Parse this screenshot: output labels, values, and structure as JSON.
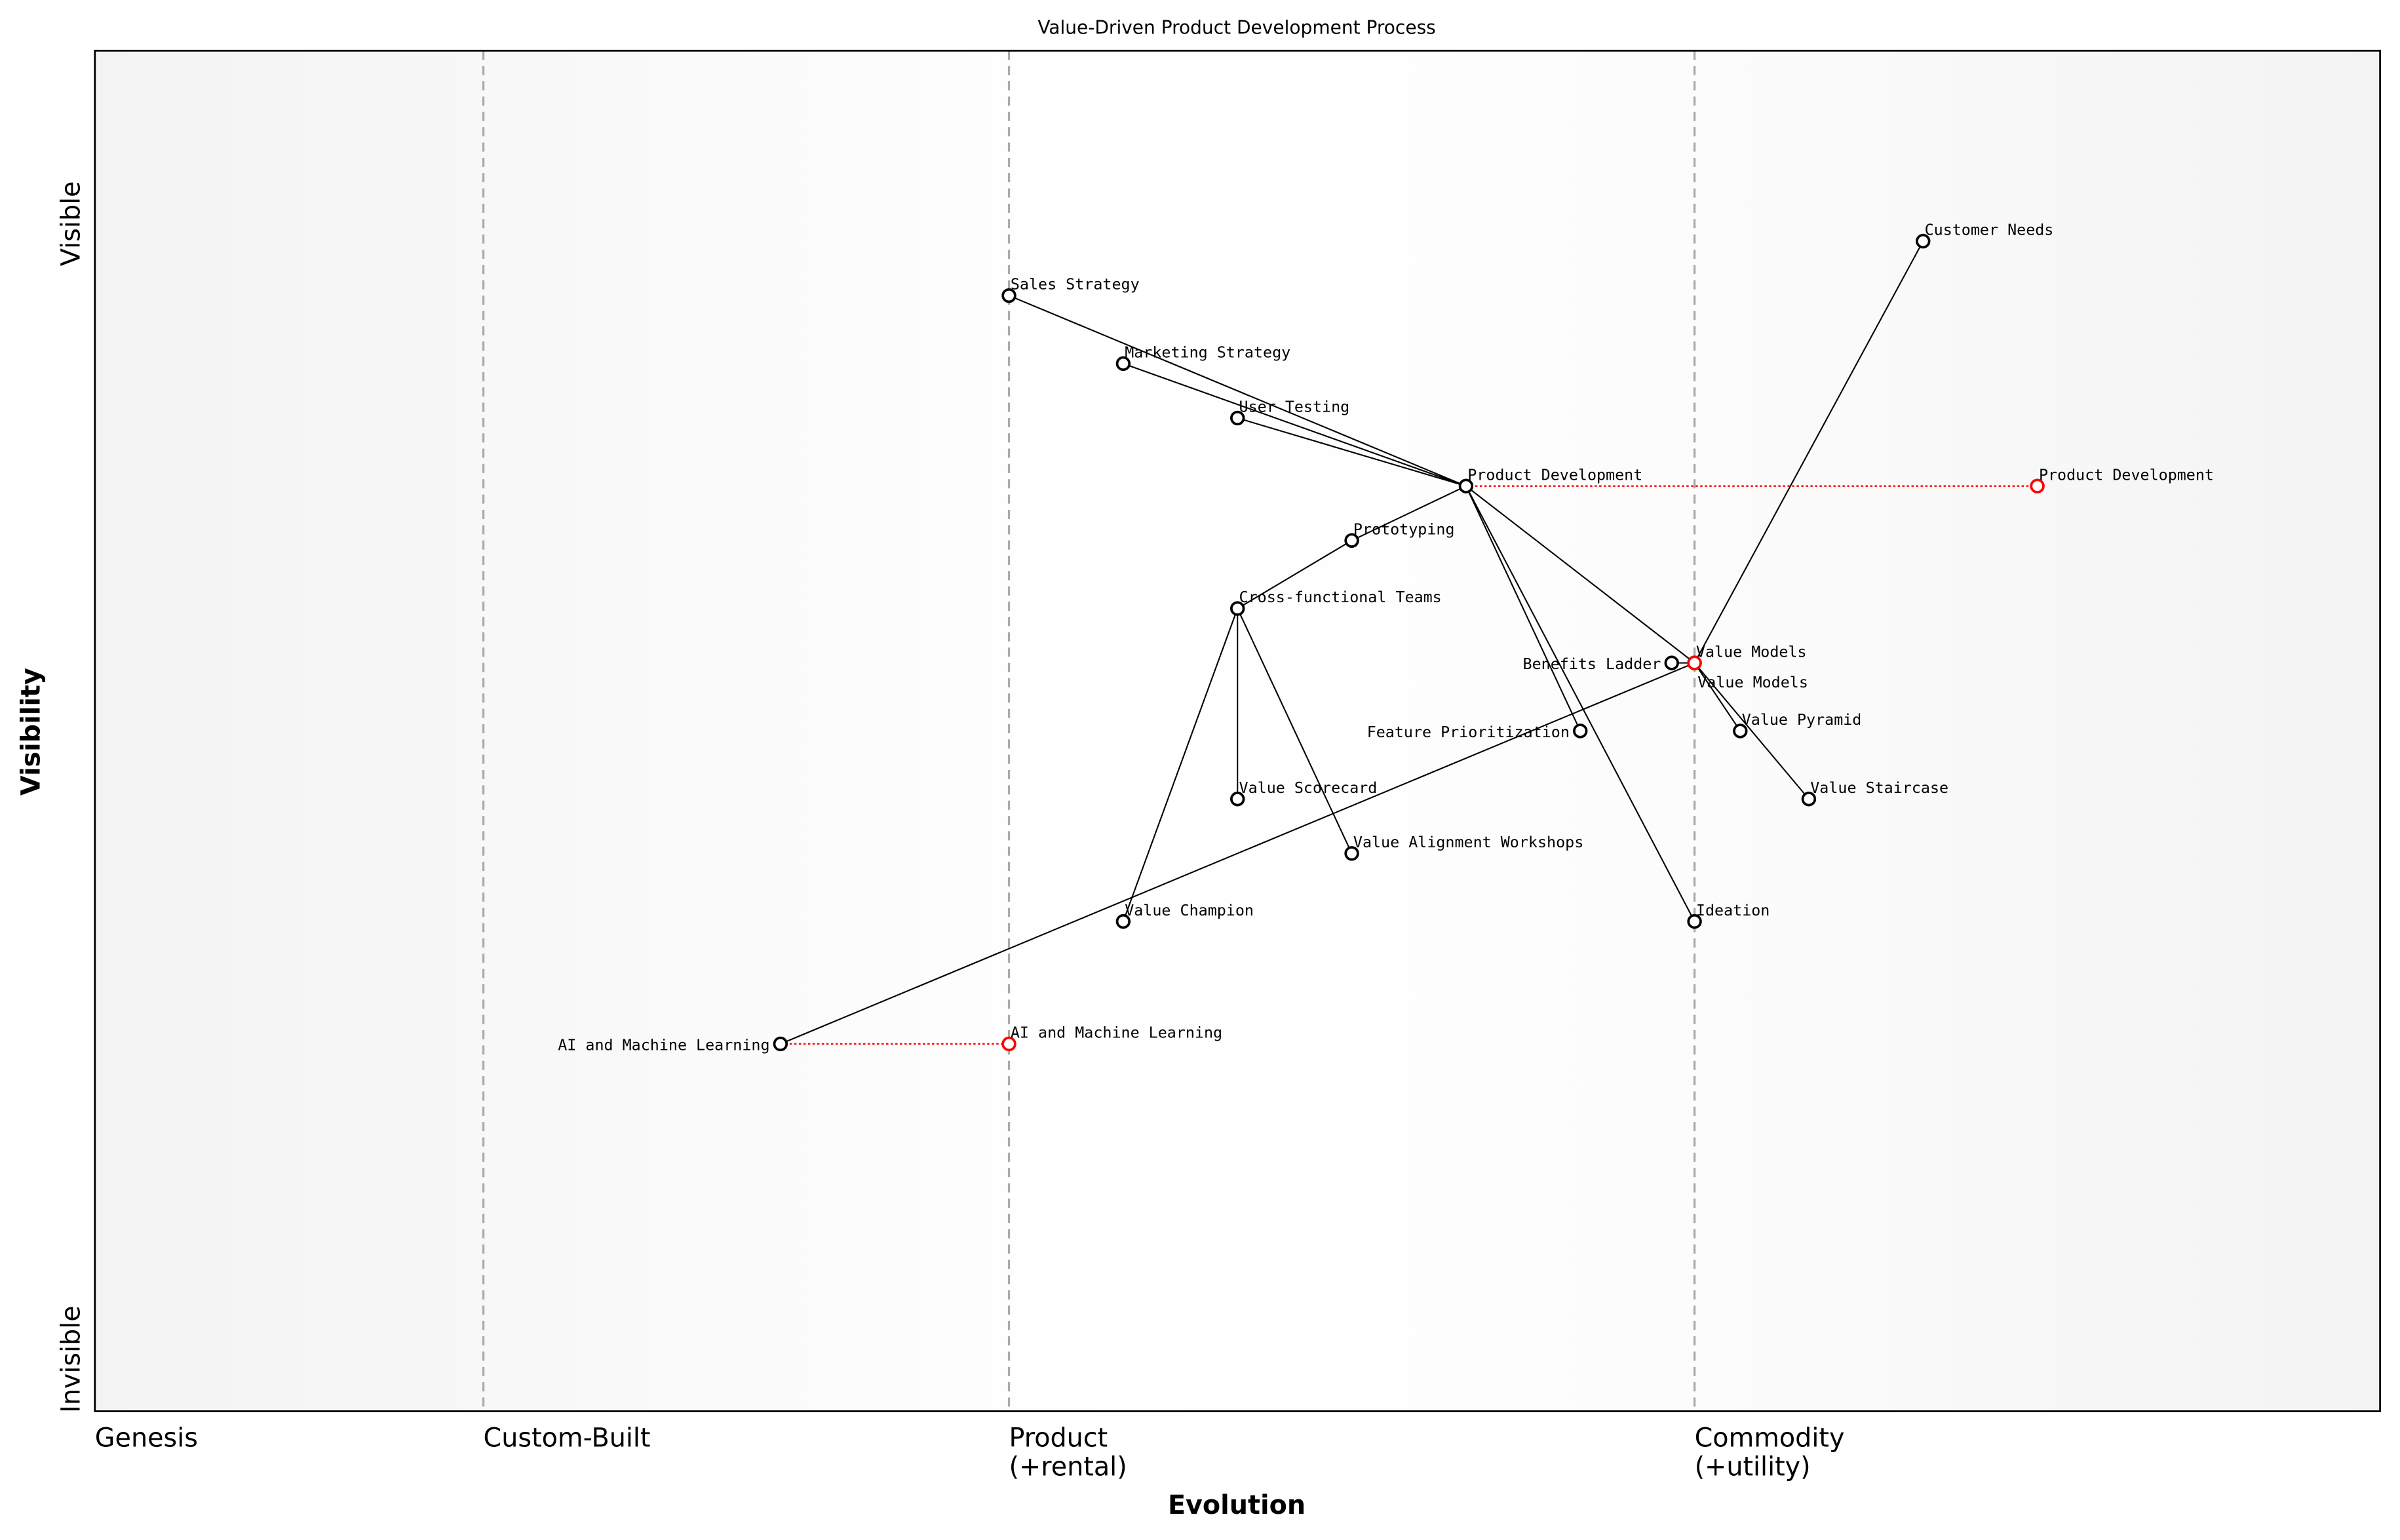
{
  "title": "Value-Driven Product Development Process",
  "x_axis": {
    "label": "Evolution",
    "stages": [
      {
        "label": "Genesis",
        "position": 0.0
      },
      {
        "label": "Custom-Built",
        "position": 0.17
      },
      {
        "label": "Product",
        "sub": "(+rental)",
        "position": 0.4
      },
      {
        "label": "Commodity",
        "sub": "(+utility)",
        "position": 0.7
      }
    ]
  },
  "y_axis": {
    "label": "Visibility",
    "top_label": "Visible",
    "bottom_label": "Invisible"
  },
  "colors": {
    "component": "#000000",
    "evolved": "#ff0000",
    "stage_line": "#aaaaaa",
    "background": "#f5f5f5"
  },
  "components": [
    {
      "name": "Customer Needs",
      "evolution": 0.8,
      "visibility": 0.86
    },
    {
      "name": "Sales Strategy",
      "evolution": 0.4,
      "visibility": 0.82
    },
    {
      "name": "Marketing Strategy",
      "evolution": 0.45,
      "visibility": 0.77
    },
    {
      "name": "User Testing",
      "evolution": 0.5,
      "visibility": 0.73
    },
    {
      "name": "Product Development",
      "evolution": 0.6,
      "visibility": 0.68
    },
    {
      "name": "Prototyping",
      "evolution": 0.55,
      "visibility": 0.64
    },
    {
      "name": "Cross-functional Teams",
      "evolution": 0.5,
      "visibility": 0.59
    },
    {
      "name": "Benefits Ladder",
      "evolution": 0.69,
      "visibility": 0.55
    },
    {
      "name": "Value Models",
      "evolution": 0.7,
      "visibility": 0.55
    },
    {
      "name": "Feature Prioritization",
      "evolution": 0.65,
      "visibility": 0.5
    },
    {
      "name": "Value Pyramid",
      "evolution": 0.72,
      "visibility": 0.5
    },
    {
      "name": "Value Scorecard",
      "evolution": 0.5,
      "visibility": 0.45
    },
    {
      "name": "Value Staircase",
      "evolution": 0.75,
      "visibility": 0.45
    },
    {
      "name": "Value Alignment Workshops",
      "evolution": 0.55,
      "visibility": 0.41
    },
    {
      "name": "Value Champion",
      "evolution": 0.45,
      "visibility": 0.36
    },
    {
      "name": "Ideation",
      "evolution": 0.7,
      "visibility": 0.36
    },
    {
      "name": "AI and Machine Learning",
      "evolution": 0.3,
      "visibility": 0.27
    }
  ],
  "links": [
    [
      "Sales Strategy",
      "Product Development"
    ],
    [
      "Marketing Strategy",
      "Product Development"
    ],
    [
      "User Testing",
      "Product Development"
    ],
    [
      "Product Development",
      "Prototyping"
    ],
    [
      "Prototyping",
      "Cross-functional Teams"
    ],
    [
      "Cross-functional Teams",
      "Value Scorecard"
    ],
    [
      "Cross-functional Teams",
      "Value Alignment Workshops"
    ],
    [
      "Cross-functional Teams",
      "Value Champion"
    ],
    [
      "Product Development",
      "Feature Prioritization"
    ],
    [
      "Product Development",
      "Ideation"
    ],
    [
      "Product Development",
      "Value Models"
    ],
    [
      "Customer Needs",
      "Value Models"
    ],
    [
      "Value Models",
      "Benefits Ladder"
    ],
    [
      "Value Models",
      "Value Pyramid"
    ],
    [
      "Value Models",
      "Value Staircase"
    ],
    [
      "Value Models",
      "AI and Machine Learning"
    ]
  ],
  "evolutions": [
    {
      "name": "Product Development",
      "to": 0.85
    },
    {
      "name": "AI and Machine Learning",
      "to": 0.4
    },
    {
      "name": "Value Models",
      "to": 0.7
    }
  ]
}
